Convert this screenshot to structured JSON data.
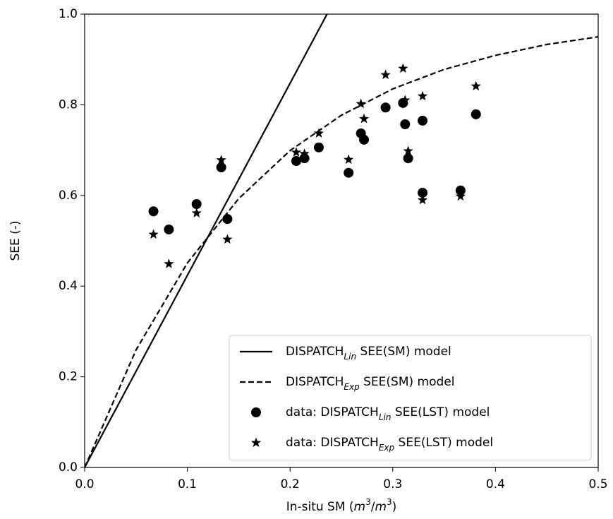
{
  "chart_data": {
    "type": "scatter",
    "x_label": [
      "In-situ SM (",
      "m",
      "3",
      "/",
      "m",
      "3",
      ")"
    ],
    "y_label": "SEE (-)",
    "xlim": [
      0,
      0.5
    ],
    "ylim": [
      0,
      1
    ],
    "xticks": [
      {
        "value": 0,
        "label": "0.0"
      },
      0.1,
      0.2,
      0.3,
      0.4,
      0.5
    ],
    "yticks": [
      {
        "value": 0,
        "label": "0.0"
      },
      0.2,
      0.4,
      0.6,
      0.8,
      {
        "value": 1,
        "label": "1.0"
      }
    ],
    "legend": "lower right",
    "series": [
      {
        "name": [
          "DISPATCH",
          "Lin",
          " SEE(SM) model"
        ],
        "kind": "line",
        "dash": "solid",
        "color": "#000000",
        "x": [
          0,
          0.236
        ],
        "values": [
          0,
          1.0
        ]
      },
      {
        "name": [
          "DISPATCH",
          "Exp",
          " SEE(SM) model"
        ],
        "kind": "line",
        "dash": "dashed",
        "color": "#000000",
        "x": [
          0,
          0.05,
          0.1,
          0.15,
          0.2,
          0.25,
          0.3,
          0.35,
          0.4,
          0.45,
          0.5
        ],
        "values": [
          0,
          0.259,
          0.451,
          0.593,
          0.699,
          0.777,
          0.835,
          0.878,
          0.909,
          0.933,
          0.95
        ]
      },
      {
        "name": [
          "data: DISPATCH",
          "Lin",
          " SEE(LST) model"
        ],
        "kind": "circle",
        "color": "#000000",
        "x": [
          0.067,
          0.082,
          0.109,
          0.133,
          0.139,
          0.206,
          0.214,
          0.228,
          0.257,
          0.269,
          0.272,
          0.293,
          0.31,
          0.312,
          0.315,
          0.329,
          0.329,
          0.366,
          0.381
        ],
        "values": [
          0.565,
          0.525,
          0.581,
          0.662,
          0.548,
          0.676,
          0.682,
          0.706,
          0.65,
          0.737,
          0.723,
          0.794,
          0.804,
          0.757,
          0.682,
          0.765,
          0.606,
          0.611,
          0.779
        ]
      },
      {
        "name": [
          "data: DISPATCH",
          "Exp",
          " SEE(LST) model"
        ],
        "kind": "star",
        "color": "#000000",
        "x": [
          0.067,
          0.082,
          0.109,
          0.133,
          0.139,
          0.206,
          0.214,
          0.228,
          0.257,
          0.269,
          0.272,
          0.293,
          0.31,
          0.312,
          0.315,
          0.329,
          0.329,
          0.366,
          0.381
        ],
        "values": [
          0.514,
          0.449,
          0.561,
          0.678,
          0.503,
          0.695,
          0.692,
          0.737,
          0.679,
          0.802,
          0.769,
          0.866,
          0.88,
          0.81,
          0.698,
          0.819,
          0.59,
          0.598,
          0.841
        ]
      }
    ]
  }
}
